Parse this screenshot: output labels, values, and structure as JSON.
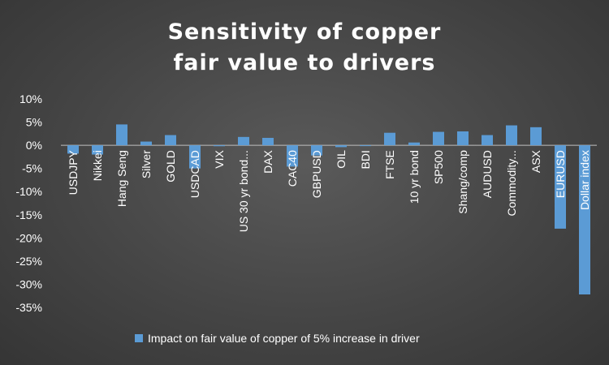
{
  "chart_data": {
    "type": "bar",
    "title_lines": [
      "Sensitivity of copper",
      "fair value to drivers"
    ],
    "xlabel": "",
    "ylabel": "",
    "ylim": [
      -35,
      10
    ],
    "yticks": [
      10,
      5,
      0,
      -5,
      -10,
      -15,
      -20,
      -25,
      -30,
      -35
    ],
    "ytick_labels": [
      "10%",
      "5%",
      "0%",
      "-5%",
      "-10%",
      "-15%",
      "-20%",
      "-25%",
      "-30%",
      "-35%"
    ],
    "grid": false,
    "legend_position": "bottom",
    "categories": [
      "USDJPY",
      "Nikkei",
      "Hang Seng",
      "Silver",
      "GOLD",
      "USDCAD",
      "VIX",
      "US 30 yr bond...",
      "DAX",
      "CAC40",
      "GBPUSD",
      "OIL",
      "BDI",
      "FTSE",
      "10 yr bond",
      "SP500",
      "Shang/comp",
      "AUDUSD",
      "Commodity...",
      "ASX",
      "EURUSD",
      "Dollar index"
    ],
    "series": [
      {
        "name": "Impact on fair value of copper of 5% increase in driver",
        "color": "#5b9bd5",
        "values": [
          -1.8,
          -2.0,
          4.5,
          0.8,
          2.2,
          -5.0,
          -0.2,
          1.8,
          1.6,
          -4.6,
          -2.2,
          -0.4,
          -0.1,
          2.7,
          0.6,
          2.9,
          3.0,
          2.2,
          4.3,
          3.9,
          -18.0,
          -32.2
        ]
      }
    ]
  }
}
